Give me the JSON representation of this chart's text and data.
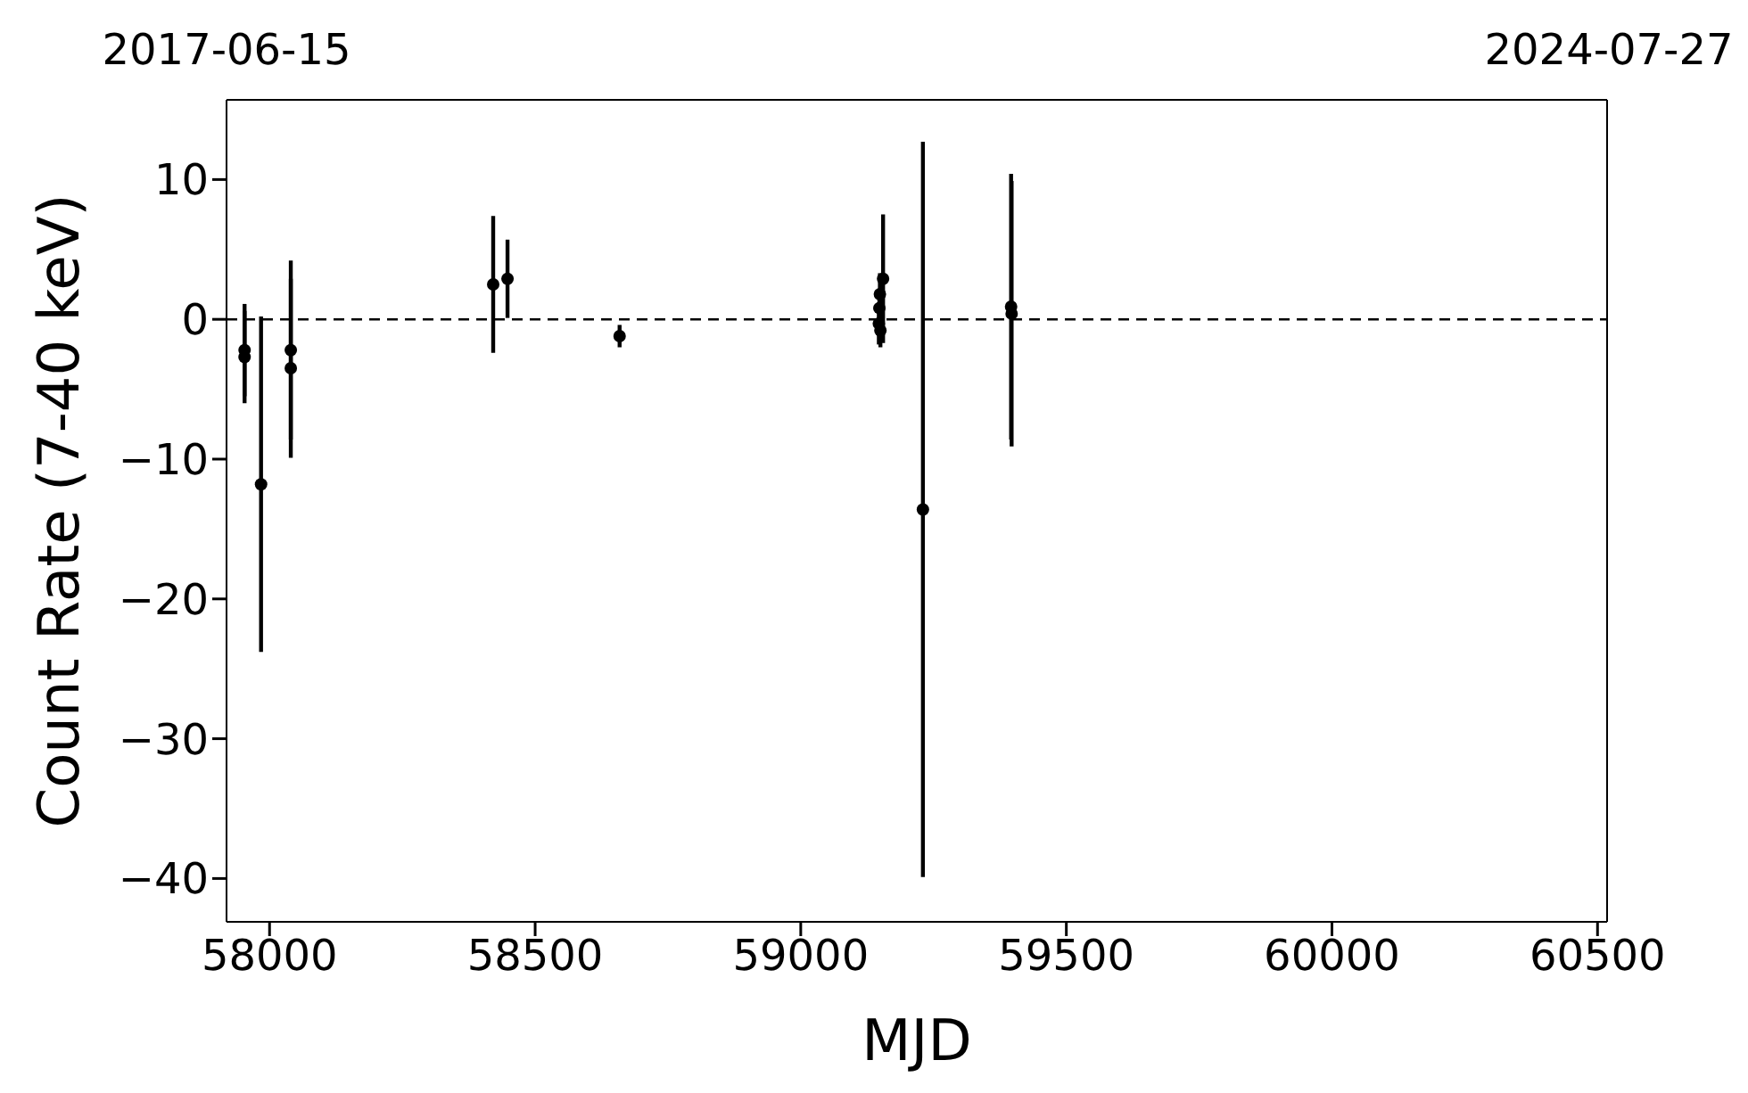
{
  "chart_data": {
    "type": "scatter",
    "xlabel": "MJD",
    "ylabel": "Count Rate (7-40 keV)",
    "series": [
      {
        "color": "#000000",
        "x": [
          57953,
          57953,
          57984,
          58040,
          58040,
          58421,
          58448,
          58659,
          59147,
          59148,
          59149,
          59150,
          59155,
          59230,
          59396,
          59397
        ],
        "values": [
          -2.2,
          -2.7,
          -11.8,
          -2.2,
          -3.5,
          2.5,
          2.9,
          -1.2,
          -0.3,
          0.8,
          1.8,
          -0.8,
          2.9,
          -13.6,
          0.9,
          0.4
        ],
        "errors": [
          3.3,
          3.3,
          12,
          6.4,
          6.4,
          4.9,
          2.8,
          0.8,
          1.5,
          1.2,
          1.5,
          1.2,
          4.6,
          26.3,
          9.5,
          9.5
        ]
      }
    ],
    "xlim": [
      57919,
      60518
    ],
    "xticks": [
      58000,
      58500,
      59000,
      59500,
      60000,
      60500
    ],
    "annotations": [
      "2017-06-15",
      "2024-07-27"
    ],
    "ylim": [
      -43.1,
      15.7
    ],
    "yticks": [
      {
        "value": -40,
        "label": "−40"
      },
      {
        "value": -30,
        "label": "−30"
      },
      {
        "value": -20,
        "label": "−20"
      },
      {
        "value": -10,
        "label": "−10"
      },
      0,
      10
    ],
    "ref_lines": [
      {
        "axis": "y",
        "value": 0,
        "color": "#000000",
        "line_style": "dashed"
      }
    ],
    "marker": "circle",
    "grid": false,
    "legend": false
  }
}
